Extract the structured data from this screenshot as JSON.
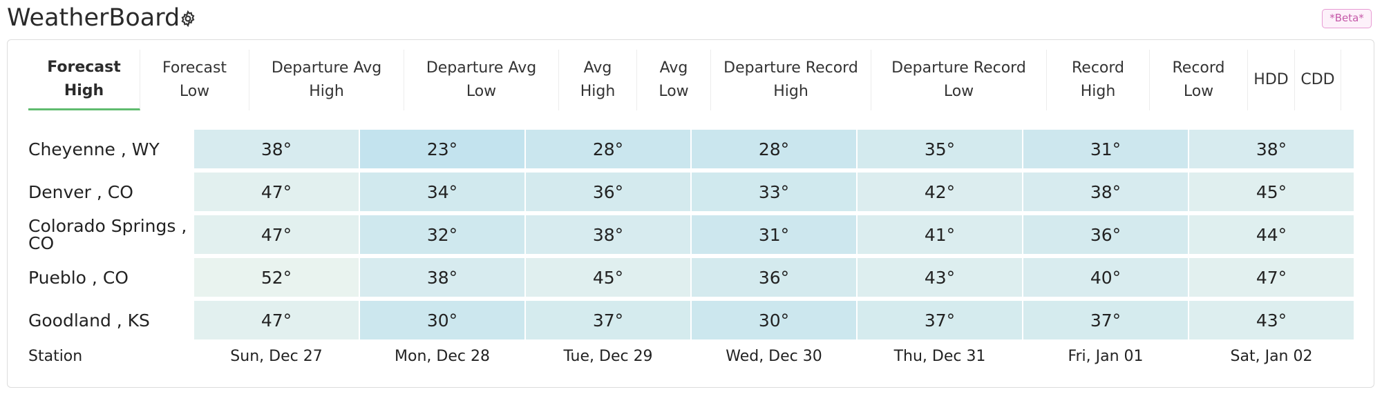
{
  "header": {
    "app_title": "WeatherBoard",
    "beta_label": "*Beta*"
  },
  "tabs": [
    {
      "label": "Forecast\nHigh",
      "active": true
    },
    {
      "label": "Forecast\nLow",
      "active": false
    },
    {
      "label": "Departure Avg\nHigh",
      "active": false
    },
    {
      "label": "Departure Avg\nLow",
      "active": false
    },
    {
      "label": "Avg\nHigh",
      "active": false
    },
    {
      "label": "Avg\nLow",
      "active": false
    },
    {
      "label": "Departure Record\nHigh",
      "active": false
    },
    {
      "label": "Departure Record\nLow",
      "active": false
    },
    {
      "label": "Record\nHigh",
      "active": false
    },
    {
      "label": "Record\nLow",
      "active": false
    },
    {
      "label": "HDD",
      "active": false
    },
    {
      "label": "CDD",
      "active": false
    }
  ],
  "table": {
    "station_header": "Station",
    "dates": [
      "Sun, Dec 27",
      "Mon, Dec 28",
      "Tue, Dec 29",
      "Wed, Dec 30",
      "Thu, Dec 31",
      "Fri, Jan 01",
      "Sat, Jan 02"
    ],
    "rows": [
      {
        "station": "Cheyenne , WY",
        "values": [
          "38°",
          "23°",
          "28°",
          "28°",
          "35°",
          "31°",
          "38°"
        ]
      },
      {
        "station": "Denver , CO",
        "values": [
          "47°",
          "34°",
          "36°",
          "33°",
          "42°",
          "38°",
          "45°"
        ]
      },
      {
        "station": "Colorado Springs , CO",
        "values": [
          "47°",
          "32°",
          "38°",
          "31°",
          "41°",
          "36°",
          "44°"
        ]
      },
      {
        "station": "Pueblo , CO",
        "values": [
          "52°",
          "38°",
          "45°",
          "36°",
          "43°",
          "40°",
          "47°"
        ]
      },
      {
        "station": "Goodland , KS",
        "values": [
          "47°",
          "30°",
          "37°",
          "30°",
          "37°",
          "37°",
          "43°"
        ]
      }
    ]
  },
  "colors": {
    "accent_tab_underline": "#5fbb6e",
    "beta_badge_border": "#e79ad3",
    "beta_badge_text": "#c55aa9",
    "cell_coldest": "#c3e3ee",
    "cell_warmest": "#e9f3ef"
  }
}
